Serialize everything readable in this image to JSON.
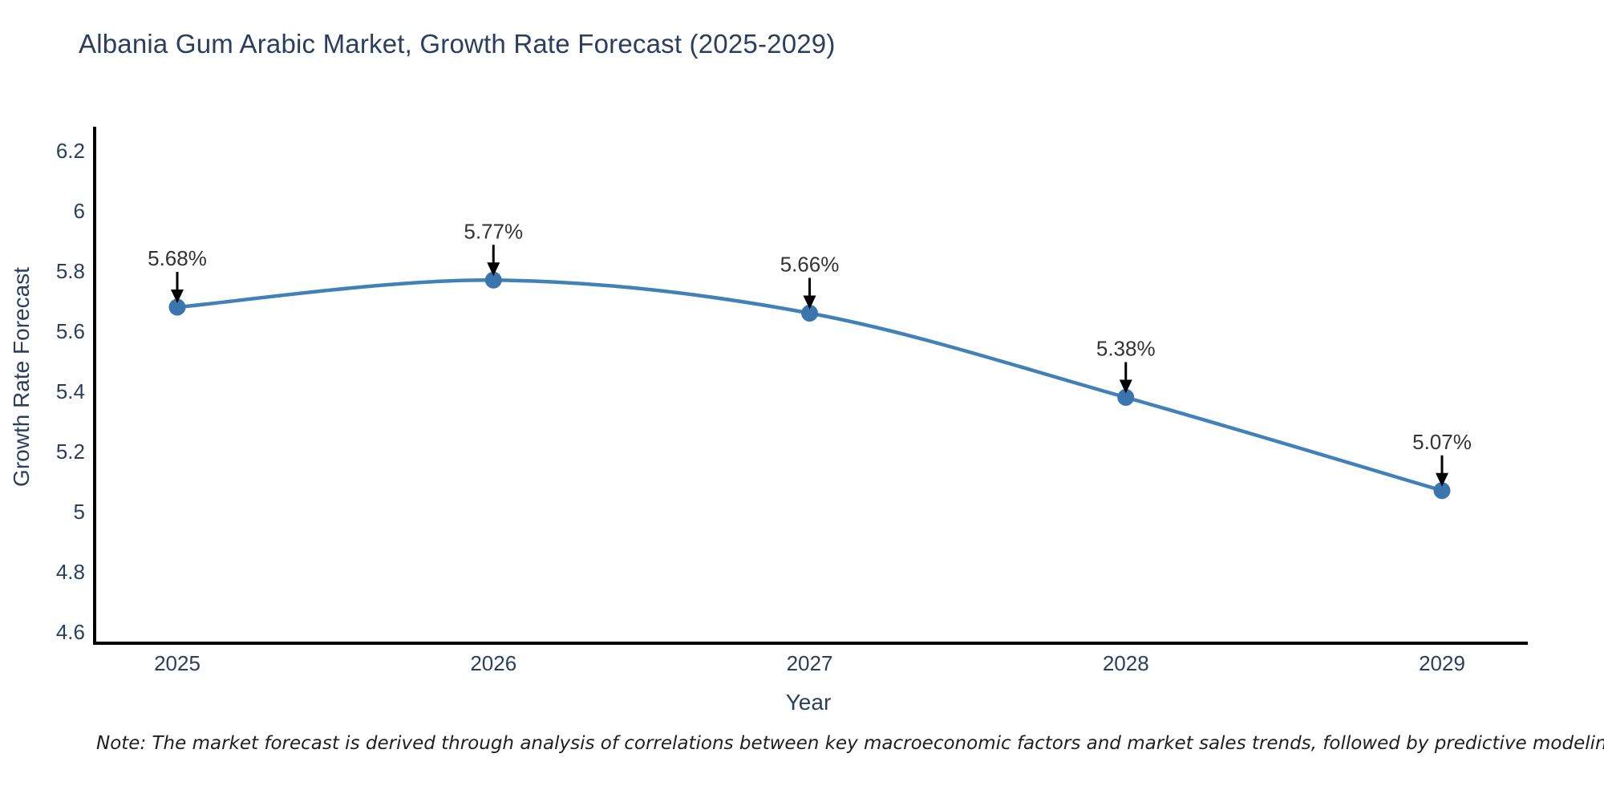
{
  "title": "Albania Gum Arabic Market, Growth Rate Forecast (2025-2029)",
  "note": "Note: The market forecast is derived through analysis of correlations between key macroeconomic factors and market sales trends, followed by predictive modeling to project future sales",
  "chart_data": {
    "type": "line",
    "title": "Albania Gum Arabic Market, Growth Rate Forecast (2025-2029)",
    "xlabel": "Year",
    "ylabel": "Growth Rate Forecast",
    "x": [
      2025,
      2026,
      2027,
      2028,
      2029
    ],
    "series": [
      {
        "name": "Growth Rate Forecast",
        "values": [
          5.68,
          5.77,
          5.66,
          5.38,
          5.07
        ]
      }
    ],
    "point_labels": [
      "5.68%",
      "5.77%",
      "5.66%",
      "5.38%",
      "5.07%"
    ],
    "yticks": [
      4.6,
      4.8,
      5,
      5.2,
      5.4,
      5.6,
      5.8,
      6,
      6.2
    ],
    "ylim": [
      4.56,
      6.27
    ],
    "xlim": [
      2024.74,
      2029.27
    ],
    "grid": false,
    "legend_position": "none",
    "line_shape": "spline",
    "colors": {
      "line": "#4281b7",
      "marker": "#3a76ad",
      "axis": "#000000",
      "tick_text": "#2a3f5f",
      "annotation_text": "#333333",
      "arrow": "#000000",
      "background": "#ffffff"
    }
  }
}
